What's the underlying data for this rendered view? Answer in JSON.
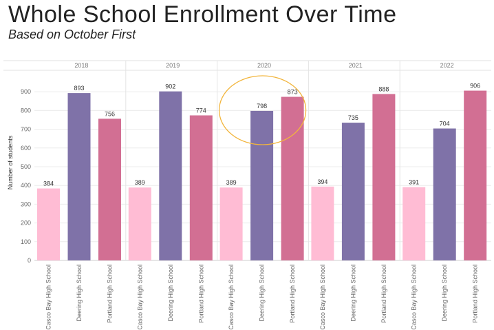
{
  "title": "Whole School Enrollment Over Time",
  "subtitle": "Based on October First",
  "chart_data": {
    "type": "bar",
    "ylabel": "Number of students",
    "ylim": [
      0,
      1000
    ],
    "yticks": [
      0,
      100,
      200,
      300,
      400,
      500,
      600,
      700,
      800,
      900
    ],
    "categories": [
      "Casco Bay High School",
      "Deering High School",
      "Portland High School"
    ],
    "colors": [
      "#ffbcd4",
      "#7f72a8",
      "#d26f93"
    ],
    "years": [
      "2018",
      "2019",
      "2020",
      "2021",
      "2022"
    ],
    "values": [
      [
        384,
        893,
        756
      ],
      [
        389,
        902,
        774
      ],
      [
        389,
        798,
        873
      ],
      [
        394,
        735,
        888
      ],
      [
        391,
        704,
        906
      ]
    ],
    "highlight": {
      "year": "2020",
      "color": "#f2b53c"
    },
    "grid": true
  }
}
